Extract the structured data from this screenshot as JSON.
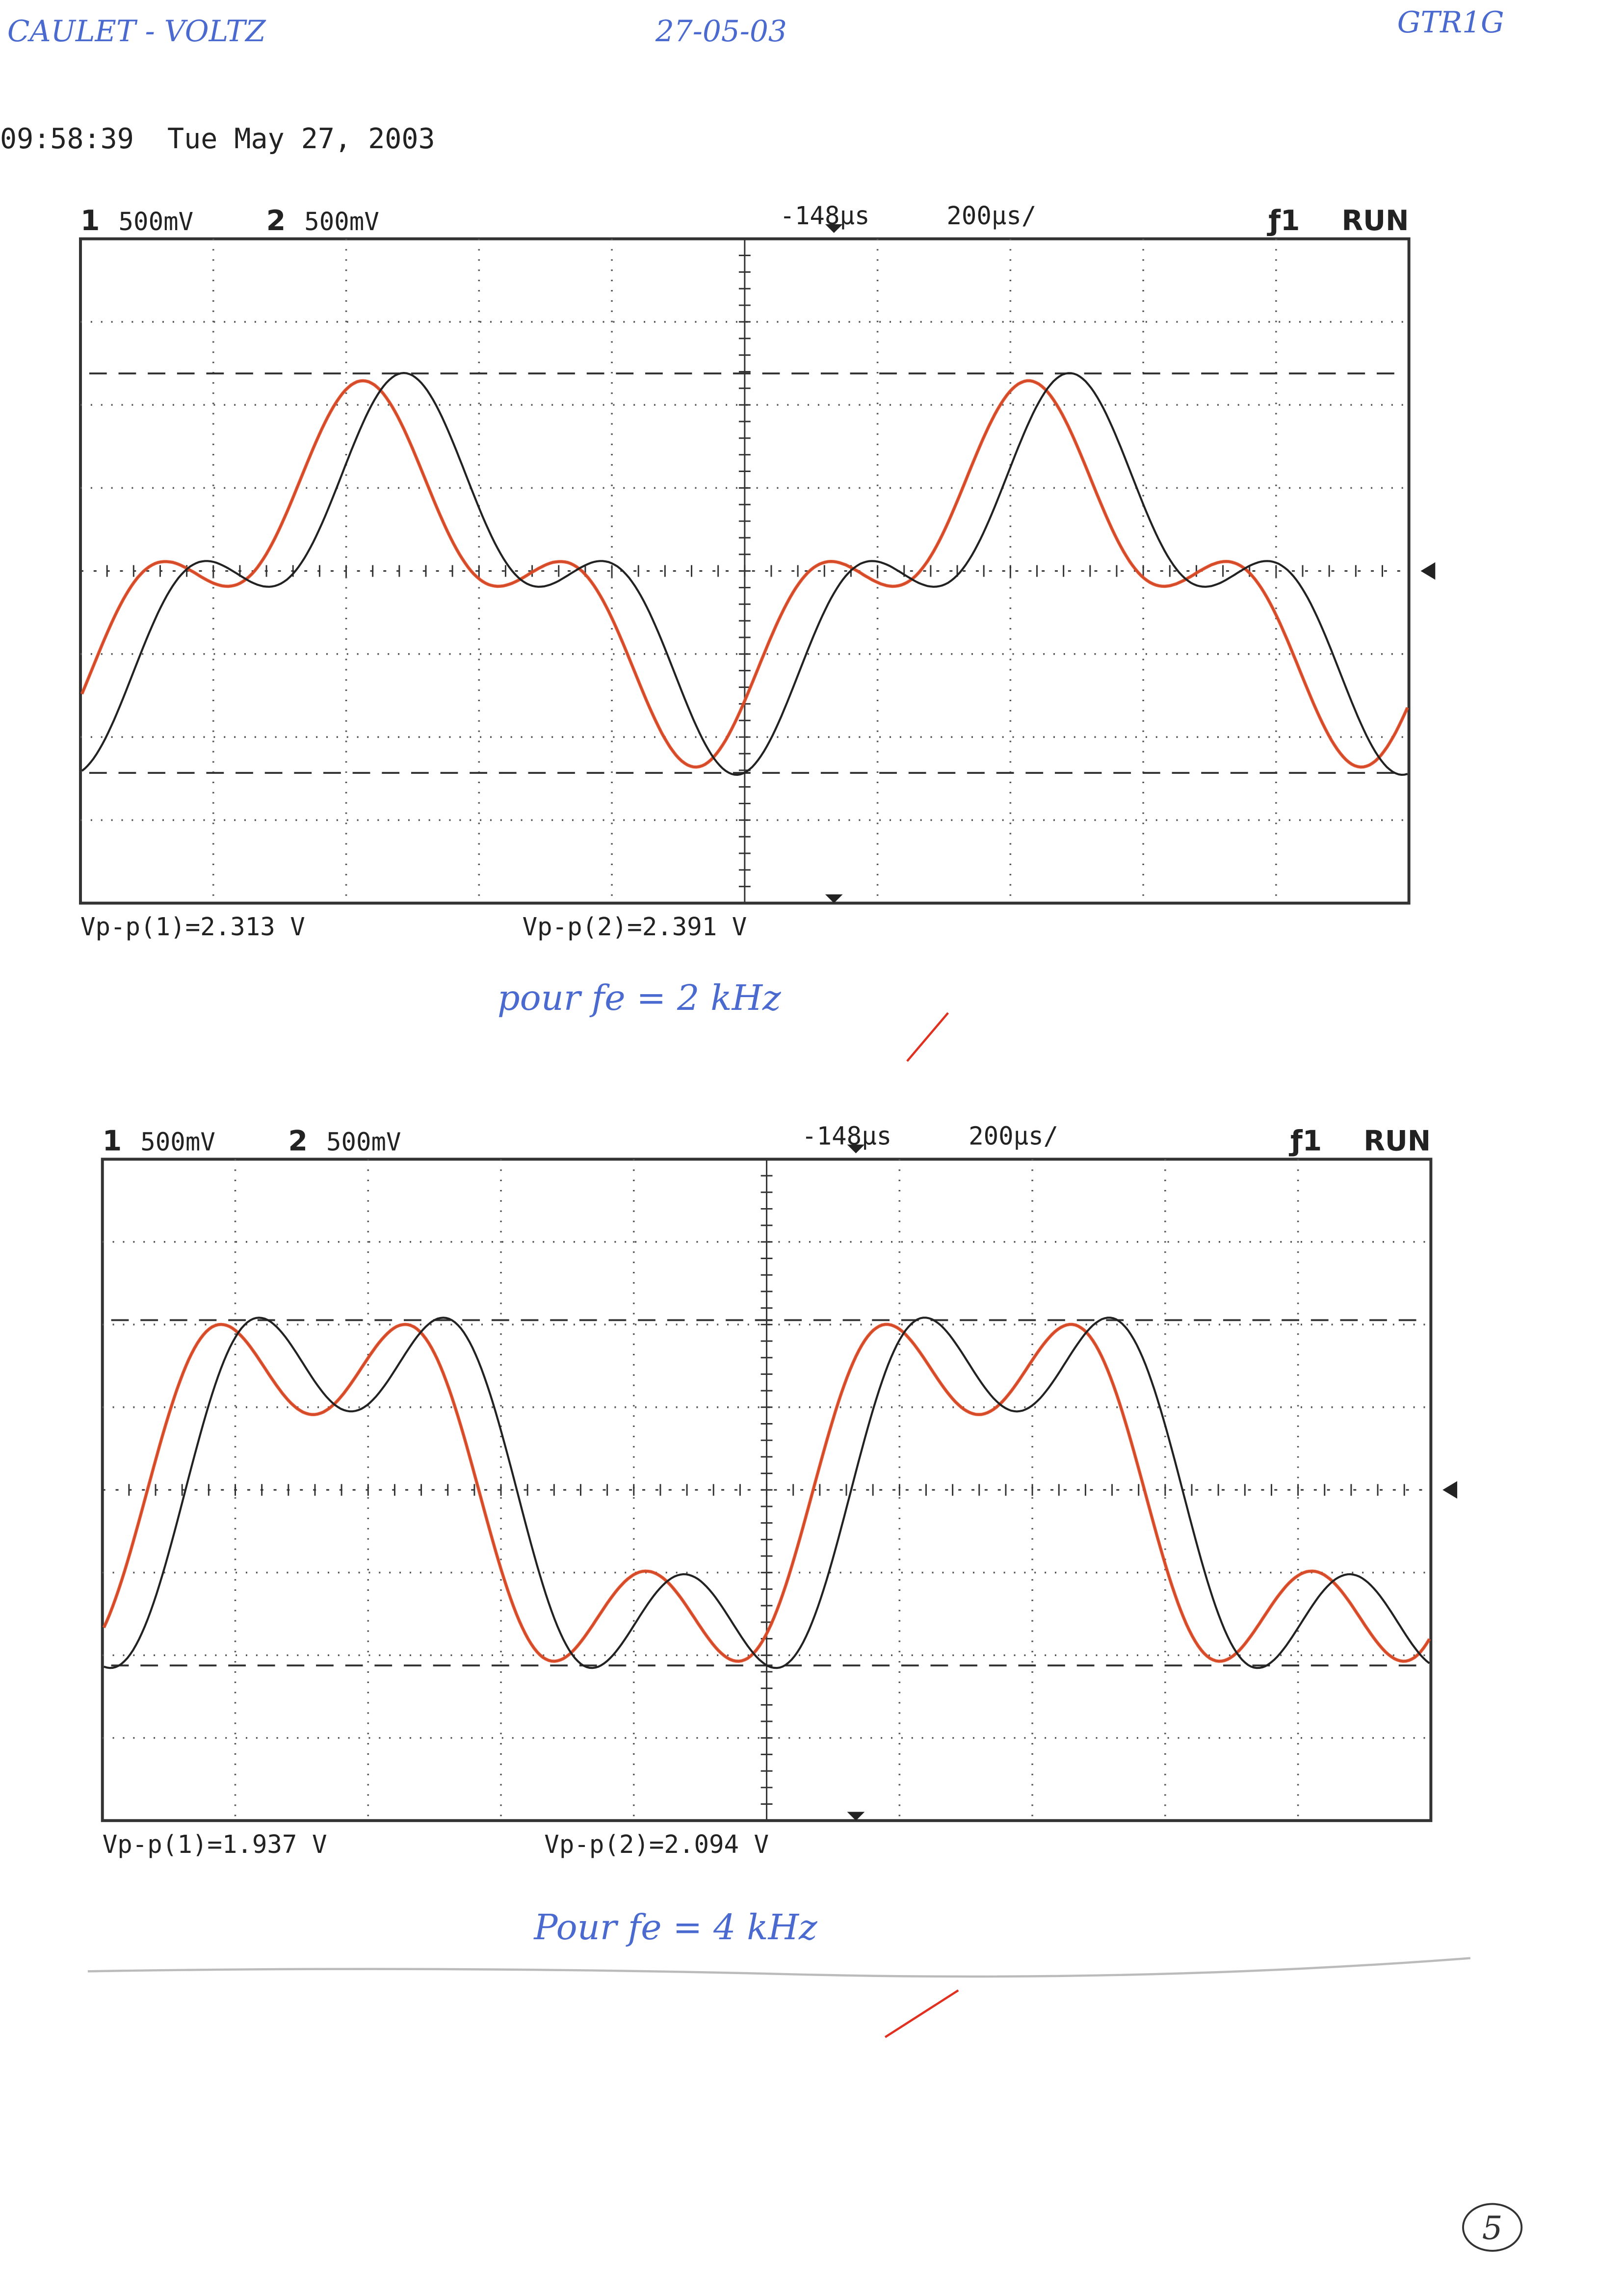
{
  "header": {
    "authors": "CAULET - VOLTZ",
    "date": "27-05-03",
    "group": "GTR1G",
    "timestamp": "09:58:39  Tue May 27, 2003"
  },
  "scopes": [
    {
      "ch1_label": "1",
      "ch1_scale": "500mV",
      "ch2_label": "2",
      "ch2_scale": "500mV",
      "delay": "-148µs",
      "timebase": "200µs/",
      "trigger": "ƒ1",
      "mode": "RUN",
      "vpp1": "Vp-p(1)=2.313 V",
      "vpp2": "Vp-p(2)=2.391 V",
      "note": "pour fe = 2 kHz"
    },
    {
      "ch1_label": "1",
      "ch1_scale": "500mV",
      "ch2_label": "2",
      "ch2_scale": "500mV",
      "delay": "-148µs",
      "timebase": "200µs/",
      "trigger": "ƒ1",
      "mode": "RUN",
      "vpp1": "Vp-p(1)=1.937 V",
      "vpp2": "Vp-p(2)=2.094 V",
      "note": "Pour fe = 4 kHz"
    }
  ],
  "page_number": "5"
}
